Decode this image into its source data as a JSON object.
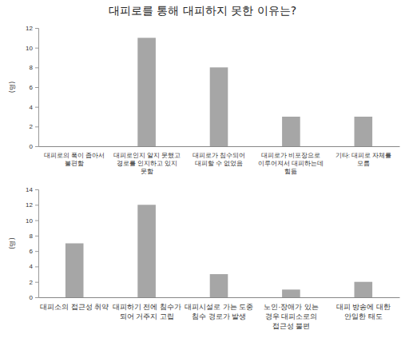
{
  "chart_data": [
    {
      "type": "bar",
      "title": "대피로를 통해 대피하지 못한 이유는?",
      "y_label": "(명)",
      "categories": [
        "대피로의 폭이 좁아서 불편함",
        "대피로인지 알지 못했고 경로를 인지하고 있지 못함",
        "대피로가 침수되어 대피할 수 없었음",
        "대피로가 비포장으로 이루어져서 대피하는데 힘듦",
        "기타: 대피로 자체를 모름"
      ],
      "values": [
        0,
        11,
        8,
        3,
        3
      ],
      "color": "#a6a6a6",
      "ylim": [
        0,
        12
      ],
      "yticks": [
        0,
        2,
        4,
        6,
        8,
        10,
        12
      ],
      "grid": false
    },
    {
      "type": "bar",
      "y_label": "(명)",
      "categories": [
        "대피소의 접근성 취약",
        "대피하기 전에 침수가 되어 거주지 고립",
        "대피시설로 가는 도중 침수 경로가 발생",
        "노인·장애가 있는 경우 대피소로의 접근성 불편",
        "대피 방송에 대한 안일한 태도"
      ],
      "values": [
        7,
        12,
        3,
        1,
        2
      ],
      "color": "#a6a6a6",
      "ylim": [
        0,
        14
      ],
      "yticks": [
        0,
        2,
        4,
        6,
        8,
        10,
        12,
        14
      ],
      "grid": false
    }
  ]
}
